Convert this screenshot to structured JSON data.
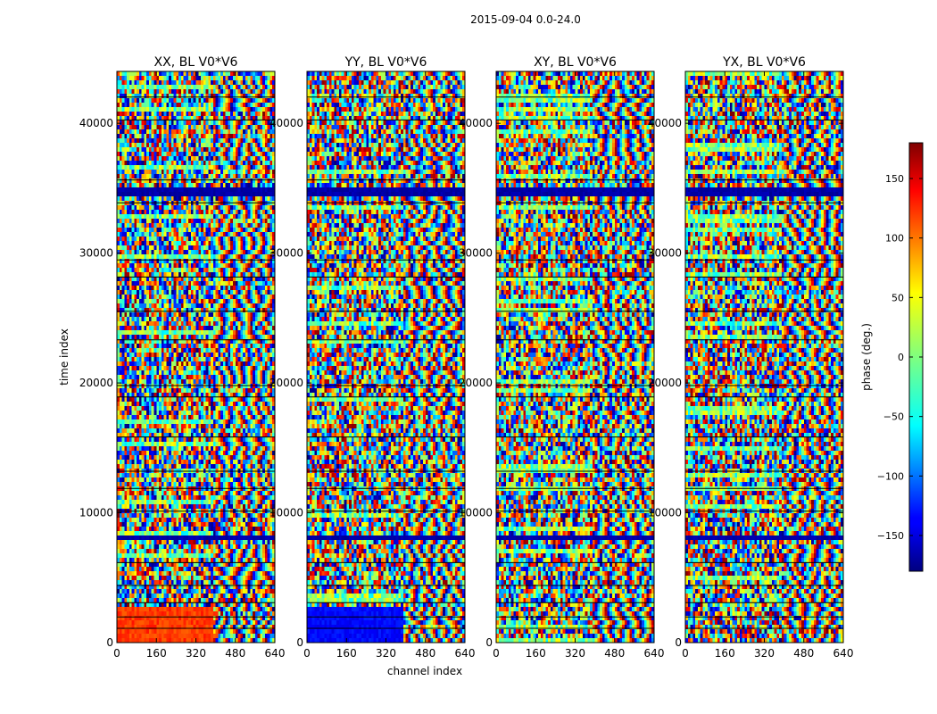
{
  "figure": {
    "suptitle": "2015-09-04 0.0-24.0",
    "xlabel": "channel index",
    "ylabel": "time index"
  },
  "chart_data": [
    {
      "type": "heatmap",
      "title": "XX, BL V0*V6",
      "xlim": [
        0,
        640
      ],
      "ylim": [
        0,
        44000
      ],
      "xticks": [
        0,
        160,
        320,
        480,
        640
      ],
      "yticks": [
        0,
        10000,
        20000,
        30000,
        40000
      ]
    },
    {
      "type": "heatmap",
      "title": "YY, BL V0*V6",
      "xlim": [
        0,
        640
      ],
      "ylim": [
        0,
        44000
      ],
      "xticks": [
        0,
        160,
        320,
        480,
        640
      ],
      "yticks": [
        0,
        10000,
        20000,
        30000,
        40000
      ]
    },
    {
      "type": "heatmap",
      "title": "XY, BL V0*V6",
      "xlim": [
        0,
        640
      ],
      "ylim": [
        0,
        44000
      ],
      "xticks": [
        0,
        160,
        320,
        480,
        640
      ],
      "yticks": [
        0,
        10000,
        20000,
        30000,
        40000
      ]
    },
    {
      "type": "heatmap",
      "title": "YX, BL V0*V6",
      "xlim": [
        0,
        640
      ],
      "ylim": [
        0,
        44000
      ],
      "xticks": [
        0,
        160,
        320,
        480,
        640
      ],
      "yticks": [
        0,
        10000,
        20000,
        30000,
        40000
      ]
    }
  ],
  "colorbar": {
    "label": "phase (deg.)",
    "range": [
      -180,
      180
    ],
    "ticks": [
      -150,
      -100,
      -50,
      0,
      50,
      100,
      150
    ],
    "colormap": "jet",
    "colors": [
      "#00007f",
      "#0000ff",
      "#00ffff",
      "#7fff7f",
      "#ffff00",
      "#ff0000",
      "#7f0000"
    ]
  }
}
